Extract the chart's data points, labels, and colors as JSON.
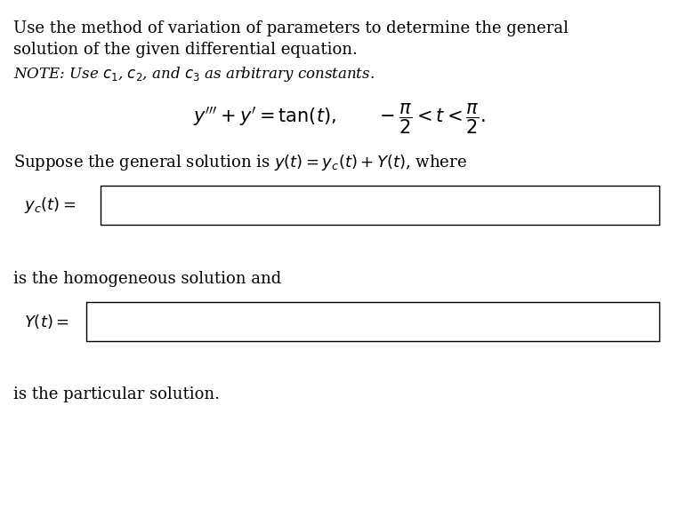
{
  "bg_color": "#ffffff",
  "title_line1": "Use the method of variation of parameters to determine the general",
  "title_line2": "solution of the given differential equation.",
  "note_text": "NOTE: Use $c_1$, $c_2$, and $c_3$ as arbitrary constants.",
  "suppose_text": "Suppose the general solution is $y(t) = y_c(t) + Y(t)$, where",
  "yc_label": "$y_c(t) =$",
  "Y_label": "$Y(t) =$",
  "homogeneous_text": "is the homogeneous solution and",
  "particular_text": "is the particular solution.",
  "box_color": "#000000",
  "text_color": "#000000",
  "font_size_body": 13,
  "font_size_note": 12,
  "font_size_eq": 15
}
